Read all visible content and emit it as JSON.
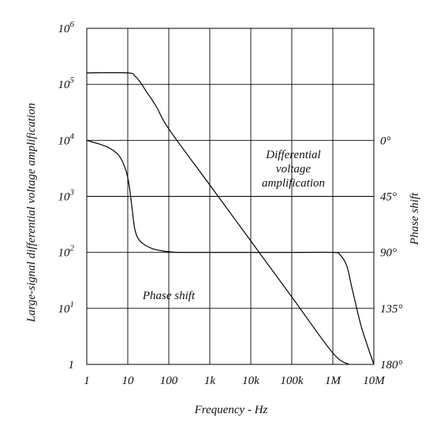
{
  "chart_data": {
    "type": "line",
    "title": "",
    "xlabel": "Frequency - Hz",
    "ylabel": "Large-signal differential voltage amplification",
    "y2label": "Phase shift",
    "x_scale": "log",
    "y_scale": "log",
    "xlim": [
      1,
      10000000
    ],
    "ylim": [
      1,
      1000000
    ],
    "y2lim": [
      0,
      180
    ],
    "y2_inverted": true,
    "grid": true,
    "x_ticks": [
      {
        "value": 1,
        "label": "1"
      },
      {
        "value": 10,
        "label": "10"
      },
      {
        "value": 100,
        "label": "100"
      },
      {
        "value": 1000,
        "label": "1k"
      },
      {
        "value": 10000,
        "label": "10k"
      },
      {
        "value": 100000,
        "label": "100k"
      },
      {
        "value": 1000000,
        "label": "1M"
      },
      {
        "value": 10000000,
        "label": "10M"
      }
    ],
    "y_ticks": [
      {
        "value": 1,
        "base": "1",
        "exp": ""
      },
      {
        "value": 10,
        "base": "10",
        "exp": "1"
      },
      {
        "value": 100,
        "base": "10",
        "exp": "2"
      },
      {
        "value": 1000,
        "base": "10",
        "exp": "3"
      },
      {
        "value": 10000,
        "base": "10",
        "exp": "4"
      },
      {
        "value": 100000,
        "base": "10",
        "exp": "5"
      },
      {
        "value": 1000000,
        "base": "10",
        "exp": "6"
      }
    ],
    "y2_ticks": [
      {
        "value": 0,
        "label": "0°"
      },
      {
        "value": 45,
        "label": "45°"
      },
      {
        "value": 90,
        "label": "90°"
      },
      {
        "value": 135,
        "label": "135°"
      },
      {
        "value": 180,
        "label": "180°"
      }
    ],
    "series": [
      {
        "name": "Differential voltage amplification",
        "axis": "left",
        "points": [
          [
            1,
            160000
          ],
          [
            10,
            160000
          ],
          [
            15,
            140000
          ],
          [
            20,
            110000
          ],
          [
            30,
            70000
          ],
          [
            50,
            40000
          ],
          [
            100,
            16000
          ],
          [
            1000,
            1600
          ],
          [
            10000,
            160
          ],
          [
            100000,
            16
          ],
          [
            1000000,
            1.6
          ],
          [
            2500000,
            1
          ]
        ]
      },
      {
        "name": "Phase shift",
        "axis": "right",
        "points": [
          [
            1,
            0
          ],
          [
            3,
            5
          ],
          [
            6,
            12
          ],
          [
            9,
            24
          ],
          [
            11,
            38
          ],
          [
            13,
            57
          ],
          [
            15,
            72
          ],
          [
            20,
            81
          ],
          [
            40,
            87
          ],
          [
            100,
            89.5
          ],
          [
            200,
            90
          ],
          [
            1000,
            90
          ],
          [
            10000,
            90
          ],
          [
            100000,
            90
          ],
          [
            1000000,
            90
          ],
          [
            1500000,
            92
          ],
          [
            2200000,
            101
          ],
          [
            3000000,
            120
          ],
          [
            5000000,
            150
          ],
          [
            10000000,
            180
          ]
        ]
      }
    ],
    "annotations": {
      "amplification_lines": [
        "Differential",
        "voltage",
        "amplification"
      ],
      "phase": "Phase shift"
    }
  }
}
